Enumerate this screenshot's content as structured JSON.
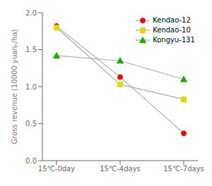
{
  "chart_data": {
    "type": "line",
    "categories": [
      "15℃-0day",
      "15℃-4days",
      "15℃-7days"
    ],
    "series": [
      {
        "name": "Kendao-12",
        "values": [
          1.82,
          1.13,
          0.37
        ],
        "color": "red",
        "marker": "circle"
      },
      {
        "name": "Kendao-10",
        "values": [
          1.8,
          1.03,
          0.83
        ],
        "color": "#dddd00",
        "marker": "square"
      },
      {
        "name": "Kongyu-131",
        "values": [
          1.42,
          1.35,
          1.1
        ],
        "color": "#22aa00",
        "marker": "triangle"
      }
    ],
    "color": "#aaaaaa",
    "ylabel": "Gross revenue (10000 yuanₙ/ha)",
    "ylim": [
      0.0,
      2.0
    ],
    "yticks": [
      {
        "value": 0,
        "label": "0.0"
      },
      0.5,
      {
        "value": 1,
        "label": "1.0"
      },
      1.5,
      {
        "value": 2,
        "label": "2.0"
      }
    ],
    "grid": false,
    "legend": "upper right"
  }
}
